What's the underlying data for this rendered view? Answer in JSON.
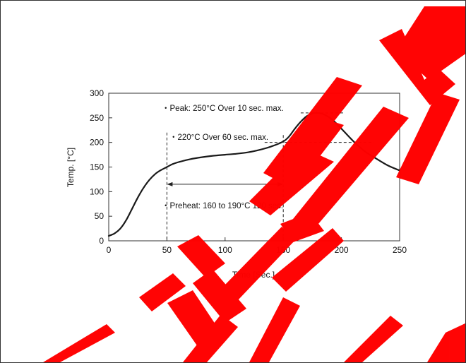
{
  "chart_data": {
    "type": "line",
    "xlabel": "Time [Sec.]",
    "ylabel": "Temp. [°C]",
    "xlim": [
      0,
      250
    ],
    "ylim": [
      0,
      300
    ],
    "x_ticks": [
      0,
      50,
      100,
      150,
      200,
      250
    ],
    "y_ticks": [
      0,
      50,
      100,
      150,
      200,
      250,
      300
    ],
    "grid": false,
    "series": [
      {
        "color": "#1a1a1a",
        "x": [
          0,
          5,
          10,
          15,
          20,
          25,
          30,
          35,
          40,
          45,
          50,
          55,
          60,
          70,
          80,
          90,
          100,
          110,
          120,
          130,
          140,
          150,
          155,
          160,
          165,
          170,
          175,
          180,
          185,
          190,
          195,
          200,
          210,
          220,
          230,
          240,
          250
        ],
        "y": [
          10,
          15,
          25,
          42,
          65,
          88,
          108,
          124,
          136,
          144,
          150,
          156,
          160,
          166,
          170,
          173,
          175,
          177,
          180,
          185,
          192,
          202,
          212,
          228,
          242,
          253,
          259,
          260,
          257,
          250,
          240,
          228,
          203,
          182,
          167,
          153,
          143
        ]
      }
    ],
    "annotations": {
      "peak": {
        "text": "・Peak: 250°C Over 10 sec. max."
      },
      "over220": {
        "text": "・220°C Over 60 sec. max."
      },
      "preheat": {
        "text": "・Preheat: 160  to 190°C 120 sec."
      }
    },
    "reference_lines": {
      "preheat_window": {
        "x_start": 50,
        "x_end": 150
      },
      "peak_level": {
        "y": 260,
        "x_start": 165,
        "x_end": 202
      },
      "level_200": {
        "y": 200,
        "x_start": 134,
        "x_end": 228
      }
    }
  },
  "colors": {
    "curve": "#1a1a1a",
    "axes": "#333333",
    "dashed": "#222222",
    "watermark": "#ff0000"
  }
}
